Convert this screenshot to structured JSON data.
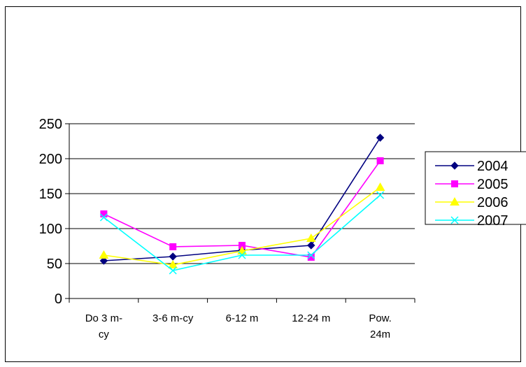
{
  "chart_data": {
    "type": "line",
    "title": "",
    "xlabel": "",
    "ylabel": "",
    "categories": [
      [
        "Do 3 m-",
        "cy"
      ],
      [
        "3-6 m-cy"
      ],
      [
        "6-12 m"
      ],
      [
        "12-24 m"
      ],
      [
        "Pow.",
        "24m"
      ]
    ],
    "ylim": [
      0,
      250
    ],
    "yticks": [
      0,
      50,
      100,
      150,
      200,
      250
    ],
    "grid": "horizontal",
    "legend": "right",
    "series": [
      {
        "name": "2004",
        "color": "#000080",
        "marker": "diamond",
        "values": [
          54,
          60,
          69,
          76,
          230
        ]
      },
      {
        "name": "2005",
        "color": "#ff00ff",
        "marker": "square",
        "values": [
          121,
          74,
          76,
          59,
          197
        ]
      },
      {
        "name": "2006",
        "color": "#ffff00",
        "marker": "triangle",
        "values": [
          62,
          48,
          68,
          86,
          159
        ]
      },
      {
        "name": "2007",
        "color": "#00ffff",
        "marker": "x",
        "values": [
          116,
          40,
          62,
          62,
          148
        ]
      }
    ]
  }
}
